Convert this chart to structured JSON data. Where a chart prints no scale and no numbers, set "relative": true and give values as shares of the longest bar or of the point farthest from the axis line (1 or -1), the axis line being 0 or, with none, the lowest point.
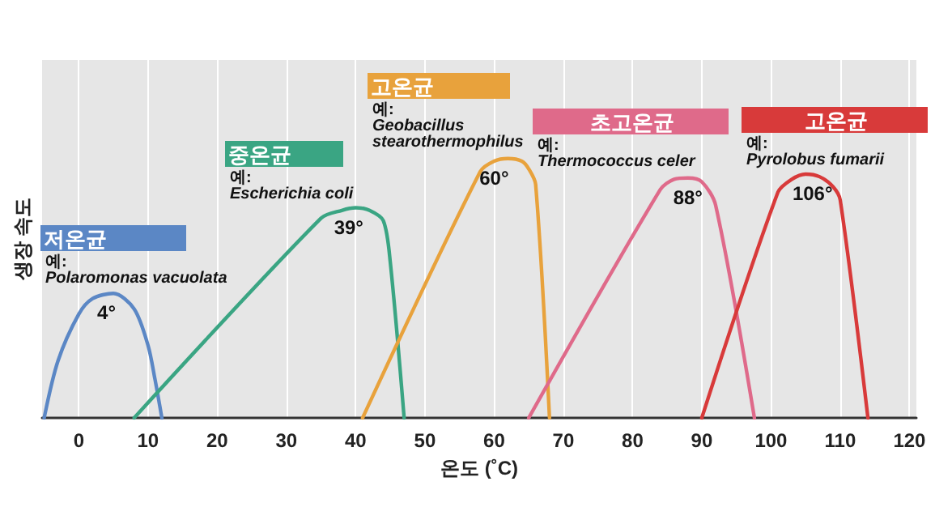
{
  "chart_data": {
    "type": "line",
    "relative": true,
    "xlabel": "온도 (˚C)",
    "ylabel": "생장 속도",
    "xlim": [
      -5.3,
      121
    ],
    "xticks": [
      0,
      10,
      20,
      30,
      40,
      50,
      60,
      70,
      80,
      90,
      100,
      110,
      120
    ],
    "grid": "x",
    "marker": "none",
    "line_style": "solid",
    "series": [
      {
        "name": "저온균",
        "color": "#5b87c5",
        "x": [
          -5,
          -3,
          0,
          2,
          5,
          8,
          10,
          11,
          12
        ],
        "values": [
          0,
          0.22,
          0.4,
          0.46,
          0.48,
          0.42,
          0.28,
          0.15,
          0
        ]
      },
      {
        "name": "중온균",
        "color": "#3aa583",
        "x": [
          8,
          35,
          38,
          40,
          42,
          44,
          45,
          47
        ],
        "values": [
          0,
          0.77,
          0.8,
          0.81,
          0.8,
          0.76,
          0.6,
          0
        ]
      },
      {
        "name": "고온균",
        "color": "#e8a23c",
        "x": [
          41,
          58,
          60,
          62,
          64,
          65,
          66,
          68
        ],
        "values": [
          0,
          0.95,
          0.99,
          1,
          0.99,
          0.96,
          0.9,
          0
        ]
      },
      {
        "name": "초고온균",
        "color": "#df6a8a",
        "x": [
          65,
          84,
          86,
          88,
          90,
          92,
          97.6
        ],
        "values": [
          0,
          0.88,
          0.92,
          0.925,
          0.91,
          0.82,
          0
        ]
      },
      {
        "name": "고온균",
        "color": "#d83a3a",
        "x": [
          90,
          101,
          103,
          105,
          107,
          109,
          110,
          114
        ],
        "values": [
          0,
          0.87,
          0.92,
          0.94,
          0.93,
          0.89,
          0.84,
          0
        ]
      }
    ],
    "annotations": [
      {
        "text": "4°",
        "x": 4,
        "y": 0.48
      },
      {
        "text": "39°",
        "x": 39,
        "y": 0.81
      },
      {
        "text": "60°",
        "x": 60,
        "y": 1
      },
      {
        "text": "88°",
        "x": 88,
        "y": 0.925
      },
      {
        "text": "106°",
        "x": 106,
        "y": 0.94
      },
      "예:\nPolaromonas vacuolata",
      "예:\nEscherichia coli",
      "예:\nGeobacillus\nstearothermophilus",
      "예:\nThermococcus celer",
      "예:\nPyrolobus fumarii"
    ]
  }
}
